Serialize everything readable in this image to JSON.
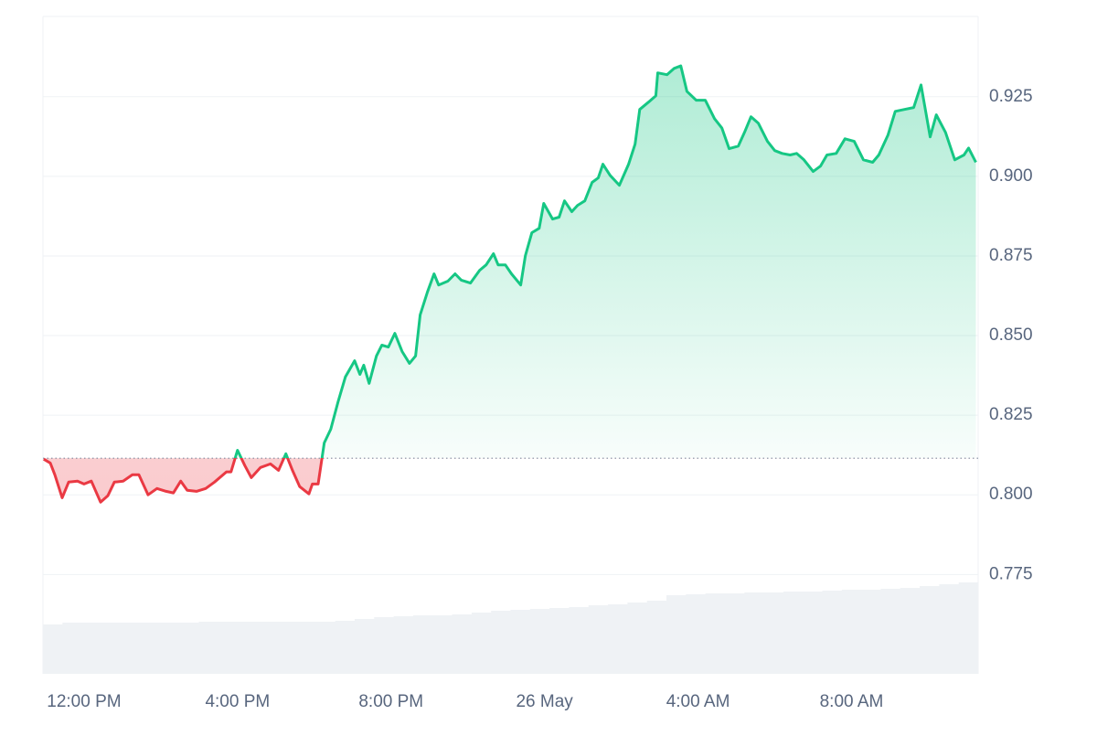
{
  "chart_data": {
    "type": "line",
    "x": [
      -1.05,
      -0.88,
      -0.76,
      -0.57,
      -0.4,
      -0.17,
      0,
      0.19,
      0.43,
      0.62,
      0.79,
      1.02,
      1.26,
      1.43,
      1.67,
      1.9,
      2.14,
      2.33,
      2.52,
      2.69,
      2.93,
      3.17,
      3.4,
      3.71,
      3.83,
      4,
      4.19,
      4.36,
      4.6,
      4.86,
      5.07,
      5.26,
      5.43,
      5.62,
      5.86,
      5.95,
      6.1,
      6.26,
      6.43,
      6.62,
      6.81,
      7.05,
      7.19,
      7.29,
      7.43,
      7.62,
      7.76,
      7.93,
      8.1,
      8.29,
      8.48,
      8.64,
      8.76,
      8.95,
      9.12,
      9.24,
      9.48,
      9.67,
      9.83,
      10.07,
      10.31,
      10.48,
      10.67,
      10.79,
      10.98,
      11.14,
      11.38,
      11.5,
      11.67,
      11.86,
      11.98,
      12.21,
      12.38,
      12.52,
      12.71,
      12.86,
      13.05,
      13.24,
      13.4,
      13.52,
      13.71,
      13.95,
      14.19,
      14.36,
      14.48,
      14.71,
      14.9,
      14.95,
      15.19,
      15.38,
      15.55,
      15.71,
      15.95,
      16.19,
      16.43,
      16.62,
      16.81,
      17.05,
      17.21,
      17.38,
      17.57,
      17.81,
      18,
      18.19,
      18.4,
      18.57,
      18.76,
      19,
      19.19,
      19.36,
      19.6,
      19.83,
      20.07,
      20.31,
      20.55,
      20.71,
      20.95,
      21.14,
      21.38,
      21.62,
      21.81,
      22.05,
      22.21,
      22.45,
      22.69,
      22.93,
      23.05,
      23.24
    ],
    "series": [
      {
        "values": [
          0.8112,
          0.81,
          0.8063,
          0.7991,
          0.804,
          0.8043,
          0.8034,
          0.8043,
          0.7977,
          0.7997,
          0.804,
          0.8043,
          0.8063,
          0.8063,
          0.8,
          0.802,
          0.8011,
          0.8006,
          0.8043,
          0.8014,
          0.8011,
          0.802,
          0.804,
          0.8072,
          0.8072,
          0.814,
          0.8092,
          0.8054,
          0.8086,
          0.8097,
          0.8077,
          0.8129,
          0.8077,
          0.8026,
          0.8003,
          0.8034,
          0.8034,
          0.8163,
          0.8206,
          0.8292,
          0.837,
          0.8421,
          0.8378,
          0.8407,
          0.835,
          0.8436,
          0.847,
          0.8464,
          0.8507,
          0.845,
          0.8413,
          0.8436,
          0.8565,
          0.8637,
          0.8694,
          0.8659,
          0.8671,
          0.8694,
          0.8674,
          0.8665,
          0.8705,
          0.8722,
          0.8757,
          0.8722,
          0.8722,
          0.8694,
          0.8659,
          0.8751,
          0.8823,
          0.8837,
          0.8915,
          0.8866,
          0.8872,
          0.8923,
          0.8889,
          0.8909,
          0.8923,
          0.8981,
          0.8995,
          0.9038,
          0.9003,
          0.8972,
          0.9038,
          0.9101,
          0.921,
          0.9233,
          0.9253,
          0.9325,
          0.9319,
          0.9339,
          0.9347,
          0.9267,
          0.9239,
          0.9239,
          0.9181,
          0.9152,
          0.9087,
          0.9095,
          0.9138,
          0.9187,
          0.9167,
          0.911,
          0.9081,
          0.9072,
          0.9067,
          0.9072,
          0.9052,
          0.9015,
          0.9032,
          0.9067,
          0.9072,
          0.9118,
          0.911,
          0.9052,
          0.9044,
          0.9067,
          0.913,
          0.9204,
          0.921,
          0.9216,
          0.9287,
          0.9124,
          0.9193,
          0.9138,
          0.9052,
          0.9067,
          0.9089,
          0.9044
        ]
      }
    ],
    "baseline": 0.8115,
    "up_color": "#16c784",
    "down_color": "#ea3943",
    "xlim": [
      -1.07,
      23.3
    ],
    "xticks": [
      {
        "value": 0,
        "label": "12:00 PM"
      },
      {
        "value": 4,
        "label": "4:00 PM"
      },
      {
        "value": 8,
        "label": "8:00 PM"
      },
      {
        "value": 12,
        "label": "26 May"
      },
      {
        "value": 16,
        "label": "4:00 AM"
      },
      {
        "value": 20,
        "label": "8:00 AM"
      }
    ],
    "ylim": [
      0.7438,
      0.9502
    ],
    "yticks": [
      0.775,
      {
        "value": 0.8,
        "label": "0.800"
      },
      0.825,
      {
        "value": 0.85,
        "label": "0.850"
      },
      0.875,
      {
        "value": 0.9,
        "label": "0.900"
      },
      0.925
    ],
    "grid": true,
    "volume": {
      "color": "#eff2f5",
      "y2lim": [
        0,
        100
      ],
      "values": [
        54,
        56,
        56,
        56,
        56,
        56,
        56,
        56,
        57,
        57,
        57,
        57,
        57,
        57,
        57,
        58,
        60,
        62,
        63,
        64,
        64,
        65,
        67,
        69,
        70,
        71,
        72,
        73,
        75,
        76,
        78,
        80,
        86,
        87,
        88,
        88,
        89,
        89,
        90,
        90,
        91,
        92,
        92,
        93,
        94,
        96,
        98,
        100
      ]
    }
  }
}
